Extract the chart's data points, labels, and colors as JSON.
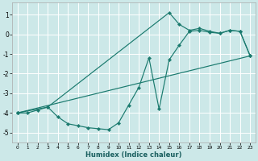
{
  "xlabel": "Humidex (Indice chaleur)",
  "background_color": "#cce8e8",
  "grid_color": "#b0d0d0",
  "line_color": "#1a7a6e",
  "xlim": [
    -0.5,
    23.5
  ],
  "ylim": [
    -5.5,
    1.6
  ],
  "yticks": [
    1,
    0,
    -1,
    -2,
    -3,
    -4,
    -5
  ],
  "xticks": [
    0,
    1,
    2,
    3,
    4,
    5,
    6,
    7,
    8,
    9,
    10,
    11,
    12,
    13,
    14,
    15,
    16,
    17,
    18,
    19,
    20,
    21,
    22,
    23
  ],
  "series1_x": [
    0,
    1,
    2,
    3,
    4,
    5,
    6,
    7,
    8,
    9,
    10,
    11,
    12,
    13,
    14,
    15,
    16,
    17,
    18,
    19,
    20,
    21,
    22,
    23
  ],
  "series1_y": [
    -4.0,
    -4.0,
    -3.85,
    -3.7,
    -4.2,
    -4.55,
    -4.65,
    -4.75,
    -4.8,
    -4.85,
    -4.5,
    -3.6,
    -2.7,
    -1.2,
    -3.8,
    -1.3,
    -0.55,
    0.15,
    0.2,
    0.1,
    0.05,
    0.2,
    0.15,
    -1.1
  ],
  "series2_x": [
    0,
    3,
    15,
    16,
    17,
    18,
    19,
    20,
    21,
    22,
    23
  ],
  "series2_y": [
    -4.0,
    -3.7,
    1.1,
    0.5,
    0.2,
    0.3,
    0.15,
    0.05,
    0.2,
    0.15,
    -1.1
  ],
  "series3_x": [
    0,
    23
  ],
  "series3_y": [
    -4.0,
    -1.1
  ]
}
